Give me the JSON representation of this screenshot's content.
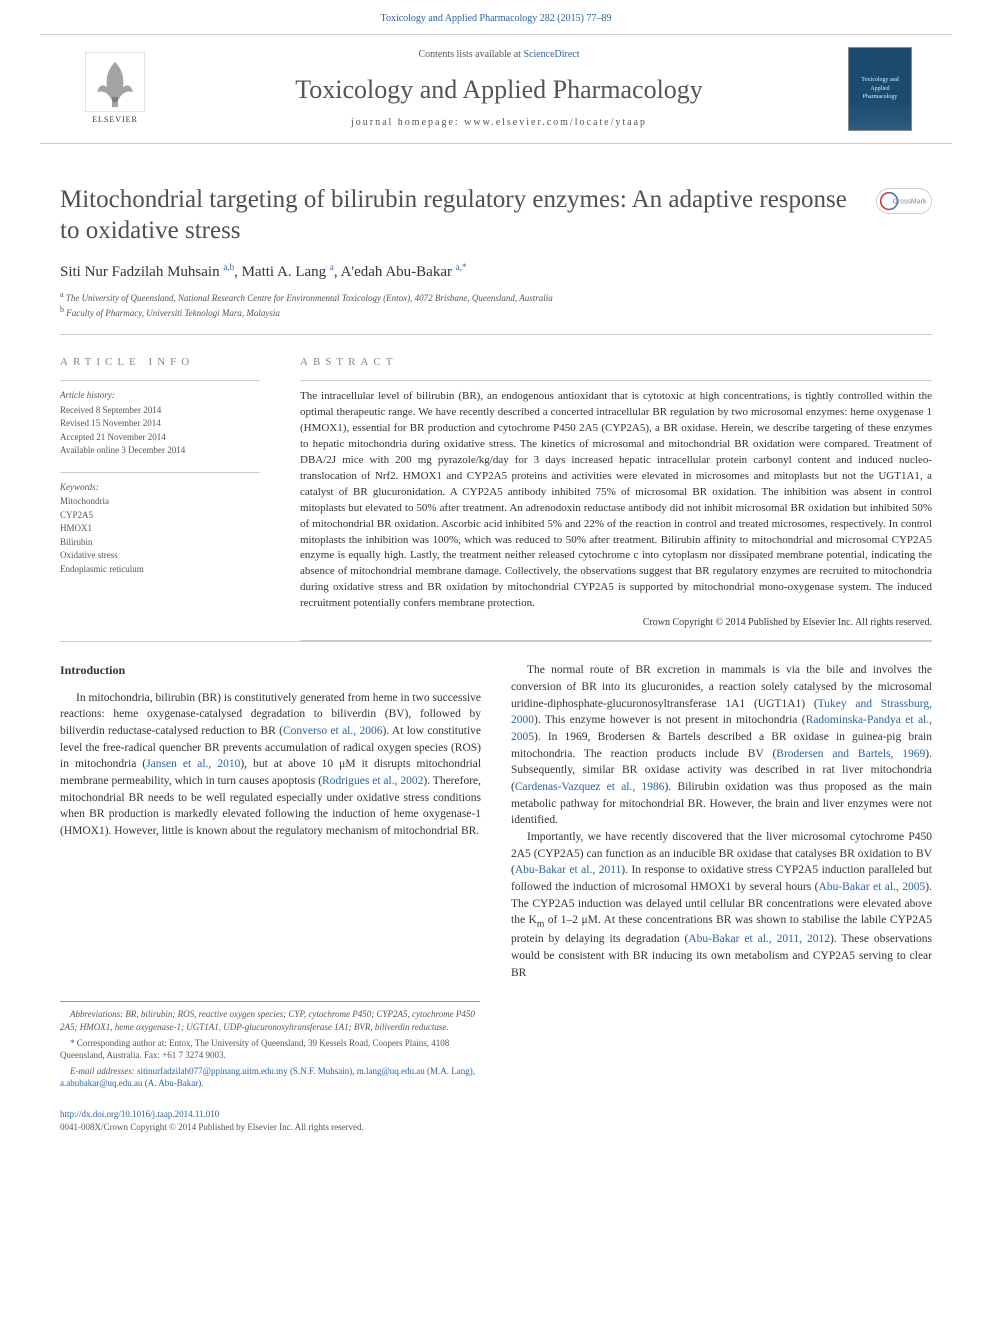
{
  "header": {
    "citation_line": "Toxicology and Applied Pharmacology 282 (2015) 77–89",
    "contents_prefix": "Contents lists available at ",
    "contents_link": "ScienceDirect",
    "journal_name": "Toxicology and Applied Pharmacology",
    "homepage_prefix": "journal homepage: ",
    "homepage_url": "www.elsevier.com/locate/ytaap",
    "elsevier_label": "ELSEVIER",
    "cover_text": "Toxicology and Applied Pharmacology"
  },
  "title": "Mitochondrial targeting of bilirubin regulatory enzymes: An adaptive response to oxidative stress",
  "crossmark_label": "CrossMark",
  "authors_html": "Siti Nur Fadzilah Muhsain <sup>a,b</sup>, Matti A. Lang <sup>a</sup>, A'edah Abu-Bakar <sup>a,</sup><sup class='star-sup'>*</sup>",
  "affiliations": {
    "a": "The University of Queensland, National Research Centre for Environmental Toxicology (Entox), 4072 Brisbane, Queensland, Australia",
    "b": "Faculty of Pharmacy, Universiti Teknologi Mara, Malaysia"
  },
  "article_info": {
    "heading": "ARTICLE INFO",
    "history_label": "Article history:",
    "history": [
      "Received 8 September 2014",
      "Revised 15 November 2014",
      "Accepted 21 November 2014",
      "Available online 3 December 2014"
    ],
    "keywords_label": "Keywords:",
    "keywords": [
      "Mitochondria",
      "CYP2A5",
      "HMOX1",
      "Bilirubin",
      "Oxidative stress",
      "Endoplasmic reticulum"
    ]
  },
  "abstract": {
    "heading": "ABSTRACT",
    "text": "The intracellular level of bilirubin (BR), an endogenous antioxidant that is cytotoxic at high concentrations, is tightly controlled within the optimal therapeutic range. We have recently described a concerted intracellular BR regulation by two microsomal enzymes: heme oxygenase 1 (HMOX1), essential for BR production and cytochrome P450 2A5 (CYP2A5), a BR oxidase. Herein, we describe targeting of these enzymes to hepatic mitochondria during oxidative stress. The kinetics of microsomal and mitochondrial BR oxidation were compared. Treatment of DBA/2J mice with 200 mg pyrazole/kg/day for 3 days increased hepatic intracellular protein carbonyl content and induced nucleo-translocation of Nrf2. HMOX1 and CYP2A5 proteins and activities were elevated in microsomes and mitoplasts but not the UGT1A1, a catalyst of BR glucuronidation. A CYP2A5 antibody inhibited 75% of microsomal BR oxidation. The inhibition was absent in control mitoplasts but elevated to 50% after treatment. An adrenodoxin reductase antibody did not inhibit microsomal BR oxidation but inhibited 50% of mitochondrial BR oxidation. Ascorbic acid inhibited 5% and 22% of the reaction in control and treated microsomes, respectively. In control mitoplasts the inhibition was 100%, which was reduced to 50% after treatment. Bilirubin affinity to mitochondrial and microsomal CYP2A5 enzyme is equally high. Lastly, the treatment neither released cytochrome c into cytoplasm nor dissipated membrane potential, indicating the absence of mitochondrial membrane damage. Collectively, the observations suggest that BR regulatory enzymes are recruited to mitochondria during oxidative stress and BR oxidation by mitochondrial CYP2A5 is supported by mitochondrial mono-oxygenase system. The induced recruitment potentially confers membrane protection.",
    "copyright": "Crown Copyright © 2014 Published by Elsevier Inc. All rights reserved."
  },
  "body": {
    "intro_heading": "Introduction",
    "left_p1": "In mitochondria, bilirubin (BR) is constitutively generated from heme in two successive reactions: heme oxygenase-catalysed degradation to biliverdin (BV), followed by biliverdin reductase-catalysed reduction to BR (<span class='cite'>Converso et al., 2006</span>). At low constitutive level the free-radical quencher BR prevents accumulation of radical oxygen species (ROS) in mitochondria (<span class='cite'>Jansen et al., 2010</span>), but at above 10 μM it disrupts mitochondrial membrane permeability, which in turn causes apoptosis (<span class='cite'>Rodrigues et al., 2002</span>). Therefore, mitochondrial BR needs to be well regulated especially under oxidative stress conditions when BR production is markedly elevated following the induction of heme oxygenase-1 (HMOX1). However, little is known about the regulatory mechanism of mitochondrial BR.",
    "right_p1": "The normal route of BR excretion in mammals is via the bile and involves the conversion of BR into its glucuronides, a reaction solely catalysed by the microsomal uridine-diphosphate-glucuronosyltransferase 1A1 (UGT1A1) (<span class='cite'>Tukey and Strassburg, 2000</span>). This enzyme however is not present in mitochondria (<span class='cite'>Radominska-Pandya et al., 2005</span>). In 1969, Brodersen & Bartels described a BR oxidase in guinea-pig brain mitochondria. The reaction products include BV (<span class='cite'>Brodersen and Bartels, 1969</span>). Subsequently, similar BR oxidase activity was described in rat liver mitochondria (<span class='cite'>Cardenas-Vazquez et al., 1986</span>). Bilirubin oxidation was thus proposed as the main metabolic pathway for mitochondrial BR. However, the brain and liver enzymes were not identified.",
    "right_p2": "Importantly, we have recently discovered that the liver microsomal cytochrome P450 2A5 (CYP2A5) can function as an inducible BR oxidase that catalyses BR oxidation to BV (<span class='cite'>Abu-Bakar et al., 2011</span>). In response to oxidative stress CYP2A5 induction paralleled but followed the induction of microsomal HMOX1 by several hours (<span class='cite'>Abu-Bakar et al., 2005</span>). The CYP2A5 induction was delayed until cellular BR concentrations were elevated above the K<sub>m</sub> of 1–2 μM. At these concentrations BR was shown to stabilise the labile CYP2A5 protein by delaying its degradation (<span class='cite'>Abu-Bakar et al., 2011, 2012</span>). These observations would be consistent with BR inducing its own metabolism and CYP2A5 serving to clear BR"
  },
  "footnotes": {
    "abbrev": "Abbreviations: BR, bilirubin; ROS, reactive oxygen species; CYP, cytochrome P450; CYP2A5, cytochrome P450 2A5; HMOX1, heme oxygenase-1; UGT1A1, UDP-glucuronosyltransferase 1A1; BVR, biliverdin reductase.",
    "corr": "Corresponding author at: Entox, The University of Queensland, 39 Kessels Road, Coopers Plains, 4108 Queensland, Australia. Fax: +61 7 3274 9003.",
    "email_label": "E-mail addresses:",
    "emails": "sitinurfadzilah077@ppinang.uitm.edu.my (S.N.F. Muhsain), m.lang@uq.edu.au (M.A. Lang), a.abubakar@uq.edu.au (A. Abu-Bakar)."
  },
  "footer": {
    "doi": "http://dx.doi.org/10.1016/j.taap.2014.11.010",
    "issn_line": "0041-008X/Crown Copyright © 2014 Published by Elsevier Inc. All rights reserved."
  },
  "colors": {
    "link": "#2864a8",
    "text": "#333333",
    "muted": "#555555",
    "rule": "#cccccc"
  }
}
